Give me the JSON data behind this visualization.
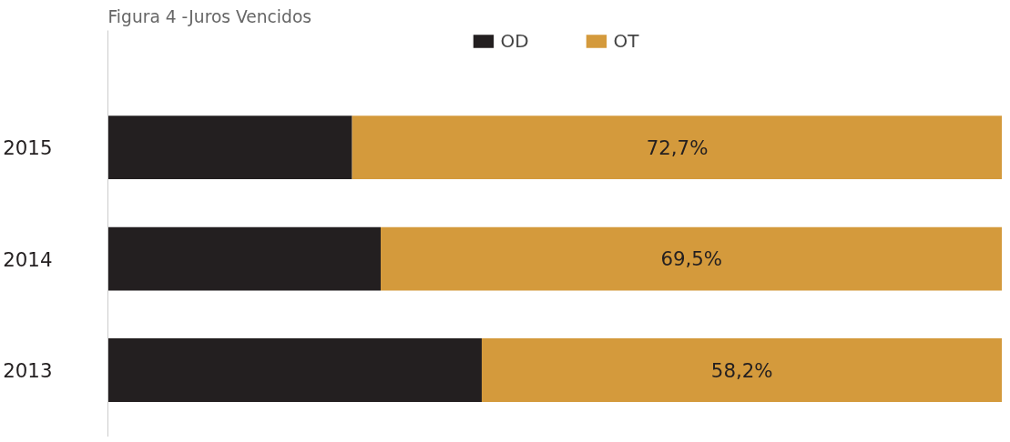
{
  "chart_data": {
    "type": "bar",
    "title": "Figura 4 -Juros Vencidos",
    "orientation": "horizontal",
    "stacked": true,
    "legend": "top",
    "tick_labels": "y",
    "xlim": [
      0,
      100
    ],
    "categories": [
      "2015",
      "2014",
      "2013"
    ],
    "series": [
      {
        "name": "OD",
        "color": "#231f20",
        "values": [
          27.3,
          30.5,
          41.8
        ]
      },
      {
        "name": "OT",
        "color": "#d49a3c",
        "values": [
          72.7,
          69.5,
          58.2
        ],
        "value_labels": [
          "72,7%",
          "69,5%",
          "58,2%"
        ]
      }
    ]
  }
}
